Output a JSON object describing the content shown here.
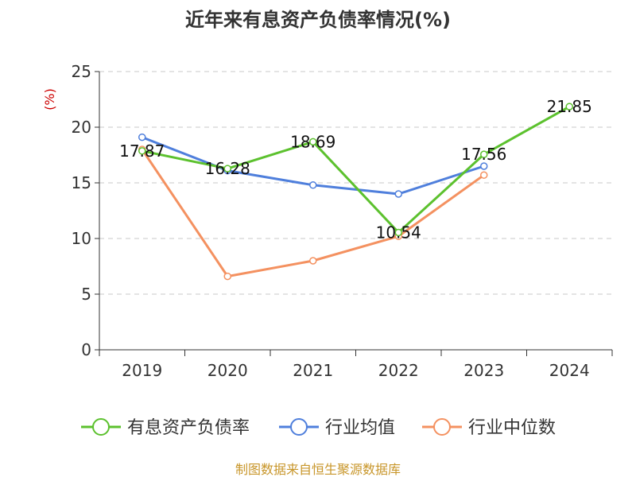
{
  "chart_data": {
    "type": "line",
    "title": "近年来有息资产负债率情况(%)",
    "ylabel": "(%)",
    "ylim": [
      0,
      25
    ],
    "yticks": [
      0,
      5,
      10,
      15,
      20,
      25
    ],
    "categories": [
      "2019",
      "2020",
      "2021",
      "2022",
      "2023",
      "2024"
    ],
    "grid": true,
    "legend_position": "bottom",
    "series": [
      {
        "name": "有息资产负债率",
        "color": "#5cc12e",
        "values": [
          17.87,
          16.28,
          18.69,
          10.54,
          17.56,
          21.85
        ],
        "labels": [
          "17.87",
          "16.28",
          "18.69",
          "10.54",
          "17.56",
          "21.85"
        ]
      },
      {
        "name": "行业均值",
        "color": "#4f7fdc",
        "values": [
          19.1,
          16.1,
          14.8,
          14.0,
          16.5,
          null
        ],
        "labels": []
      },
      {
        "name": "行业中位数",
        "color": "#f49160",
        "values": [
          18.0,
          6.6,
          8.0,
          10.2,
          15.7,
          null
        ],
        "labels": []
      }
    ]
  },
  "source": "制图数据来自恒生聚源数据库"
}
